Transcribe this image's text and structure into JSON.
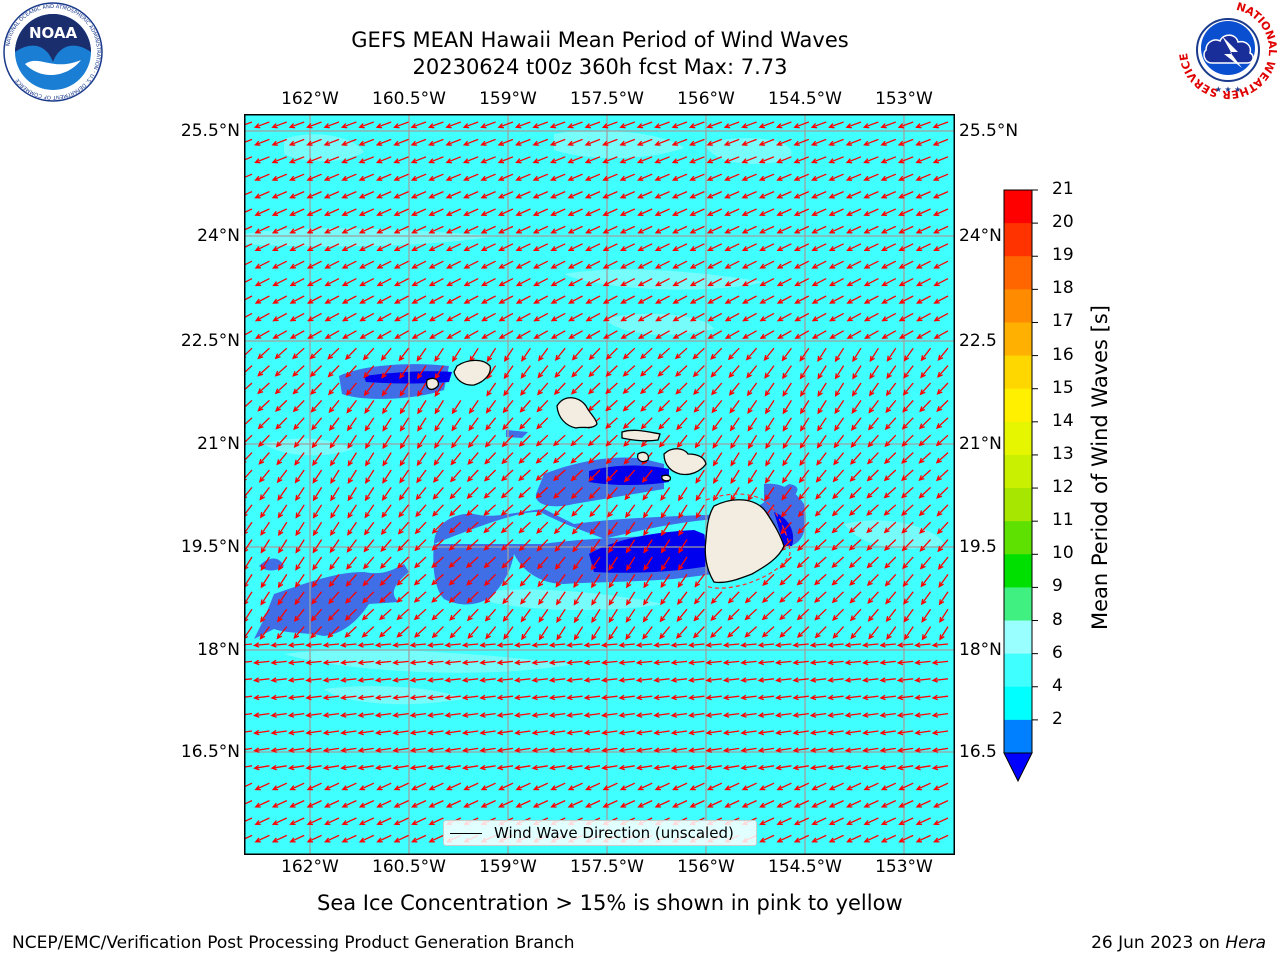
{
  "title_line1": "GEFS MEAN Hawaii Mean Period of Wind Waves",
  "title_line2": "20230624 t00z 360h fcst   Max: 7.73",
  "lon_labels": [
    "162°W",
    "160.5°W",
    "159°W",
    "157.5°W",
    "156°W",
    "154.5°W",
    "153°W"
  ],
  "lat_labels_left": [
    "25.5°N",
    "24°N",
    "22.5°N",
    "21°N",
    "19.5°N",
    "18°N",
    "16.5°N"
  ],
  "lat_labels_right": [
    "25.5°N",
    "24°N",
    "22.5",
    "21°N",
    "19.5",
    "18°N",
    "16.5"
  ],
  "legend_label": "Wind Wave Direction (unscaled)",
  "colorbar": {
    "title": "Mean Period of Wind Waves [s]",
    "ticks": [
      "21",
      "20",
      "19",
      "18",
      "17",
      "16",
      "15",
      "14",
      "13",
      "12",
      "11",
      "10",
      "9",
      "8",
      "6",
      "4",
      "2"
    ],
    "colors": [
      "#ff0000",
      "#ff3300",
      "#ff6600",
      "#ff8c00",
      "#ffb000",
      "#ffd700",
      "#fff000",
      "#e6f500",
      "#c8f000",
      "#a6e600",
      "#5ee000",
      "#00e000",
      "#40f080",
      "#9affff",
      "#40ffff",
      "#00ffff",
      "#0080ff"
    ],
    "extend_color": "#0000ff"
  },
  "map_colors": {
    "ocean": "#40ffff",
    "light": "#7dfcfc",
    "mid": "#3f6ee6",
    "deep": "#0000ee",
    "land": "#f2ede0",
    "arrow": "#ff0000",
    "grid": "#a0a0a0"
  },
  "sea_ice_note": "Sea Ice Concentration > 15% is shown in pink to yellow",
  "footer_left": "NCEP/EMC/Verification Post Processing Product Generation Branch",
  "footer_right_date": "26 Jun 2023 on ",
  "footer_right_host": "Hera",
  "noaa_logo_text": "NOAA",
  "noaa_ring_text": "NATIONAL OCEANIC AND ATMOSPHERIC ADMINISTRATION · U.S. DEPARTMENT OF COMMERCE",
  "nws_ring_text": "NATIONAL WEATHER SERVICE"
}
